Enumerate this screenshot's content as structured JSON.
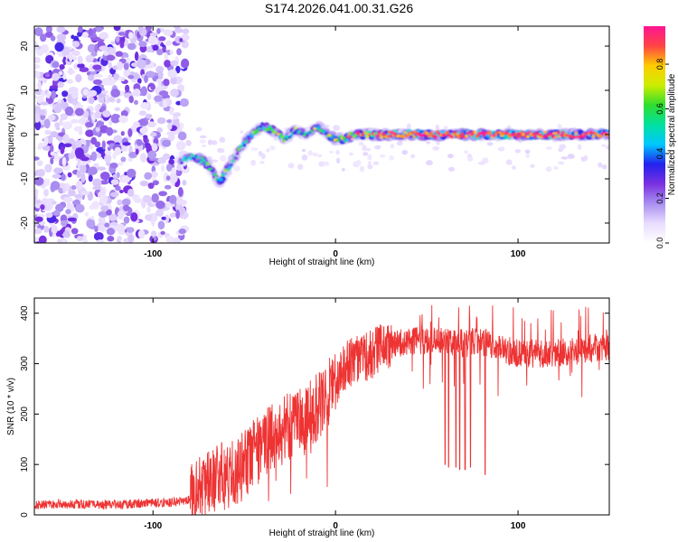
{
  "title": "S174.2026.041.00.31.G26",
  "colors": {
    "line": "#ee3333",
    "colormap": [
      "#ffffff",
      "#e9dcff",
      "#a98ff0",
      "#7a30e0",
      "#2222ee",
      "#00c8ff",
      "#00e0a0",
      "#30dd30",
      "#ccee00",
      "#ffcc00",
      "#ff4444",
      "#ff1493"
    ]
  },
  "chart_data": [
    {
      "type": "heatmap",
      "xlabel": "Height of straight line (km)",
      "ylabel": "Frequency (Hz)",
      "xlim": [
        -165,
        150
      ],
      "ylim": [
        -24.5,
        24.5
      ],
      "xticks": [
        "-100",
        "0",
        "100"
      ],
      "xtick_values": [
        -100,
        0,
        100
      ],
      "yticks": [
        "-20",
        "-10",
        "0",
        "10",
        "20"
      ],
      "ytick_values": [
        -20,
        -10,
        0,
        10,
        20
      ],
      "colorbar": {
        "label": "Normalized spectral amplitude",
        "ticks": [
          "0.0",
          "0.2",
          "0.4",
          "0.6",
          "0.8"
        ],
        "tick_values": [
          0.0,
          0.2,
          0.4,
          0.6,
          0.8
        ],
        "range": [
          0,
          0.97
        ]
      },
      "noise_region_x": [
        -165,
        -82
      ],
      "signal_track": {
        "x": [
          -85,
          -78,
          -72,
          -68,
          -64,
          -58,
          -52,
          -46,
          -40,
          -34,
          -28,
          -22,
          -16,
          -10,
          -5,
          0,
          5,
          10,
          20,
          40,
          80,
          120,
          150
        ],
        "y": [
          -6,
          -5,
          -6,
          -8,
          -11,
          -7,
          -3,
          0,
          2,
          1,
          -1,
          1,
          0,
          2,
          0,
          -1,
          -1,
          0,
          0,
          0,
          0,
          0,
          0
        ],
        "amplitude": [
          0.35,
          0.45,
          0.5,
          0.45,
          0.5,
          0.45,
          0.45,
          0.5,
          0.45,
          0.55,
          0.5,
          0.5,
          0.45,
          0.55,
          0.5,
          0.75,
          0.7,
          0.75,
          0.85,
          0.9,
          0.9,
          0.9,
          0.92
        ]
      }
    },
    {
      "type": "line",
      "xlabel": "Height of straight line (km)",
      "ylabel": "SNR (10 * v/v)",
      "xlim": [
        -165,
        150
      ],
      "ylim": [
        0,
        430
      ],
      "xticks": [
        "-100",
        "0",
        "100"
      ],
      "xtick_values": [
        -100,
        0,
        100
      ],
      "yticks": [
        "0",
        "100",
        "200",
        "300",
        "400"
      ],
      "ytick_values": [
        0,
        100,
        200,
        300,
        400
      ],
      "series": [
        {
          "name": "SNR",
          "x": [
            -165,
            -150,
            -130,
            -110,
            -90,
            -80,
            -72,
            -65,
            -55,
            -45,
            -35,
            -25,
            -15,
            -5,
            5,
            15,
            25,
            35,
            45,
            55,
            60,
            70,
            80,
            90,
            100,
            120,
            140,
            150
          ],
          "y": [
            20,
            22,
            20,
            22,
            25,
            30,
            60,
            75,
            80,
            120,
            150,
            180,
            200,
            230,
            300,
            310,
            330,
            340,
            345,
            350,
            345,
            340,
            345,
            330,
            320,
            320,
            330,
            335
          ],
          "dropouts": [
            {
              "x": 60,
              "y": 100
            },
            {
              "x": 62,
              "y": 95
            },
            {
              "x": 66,
              "y": 95
            },
            {
              "x": 68,
              "y": 90
            },
            {
              "x": 71,
              "y": 90
            },
            {
              "x": 74,
              "y": 95
            },
            {
              "x": 82,
              "y": 80
            }
          ]
        }
      ]
    }
  ]
}
